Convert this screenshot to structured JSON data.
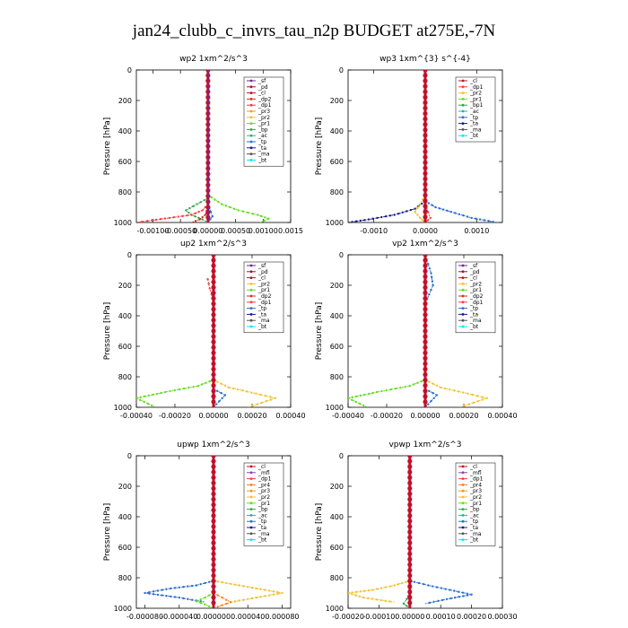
{
  "figure": {
    "title": "jan24_clubb_c_invrs_tau_n2p  BUDGET at275E,-7N",
    "colors": {
      "bt": "#00e5ff",
      "ma": "#555555",
      "ta": "#1a1a8c",
      "tp": "#2a6fd0",
      "ac": "#24b3a0",
      "bp": "#2fa84a",
      "pr1": "#66dd22",
      "pr2": "#f3c12b",
      "pr3": "#ee9922",
      "pr4": "#ff7d1a",
      "dp1": "#ff3b3b",
      "dp2": "#d62d20",
      "cl": "#c0112c",
      "pd": "#a0103c",
      "sf": "#6b2b8f",
      "mfl": "#8e3fb0"
    }
  },
  "chart_data": [
    {
      "type": "line",
      "title": "wp2   1xm^2/s^3",
      "ylabel": "Pressure  [hPa]",
      "xlim": [
        -0.0013,
        0.0015
      ],
      "ylim": [
        1000,
        0
      ],
      "xticks": [
        -0.001,
        -0.0005,
        0.0,
        0.0005,
        0.001,
        0.0015
      ],
      "xtick_labels": [
        "-0.00100",
        "-0.00050",
        "0.00000",
        "0.00050",
        "0.00100",
        "0.0015"
      ],
      "yticks": [
        0,
        200,
        400,
        600,
        800,
        1000
      ],
      "legend_position": "top-right",
      "legend": [
        "_sf",
        "_pd",
        "_cl",
        "_dp2",
        "_dp1",
        "_pr3",
        "_pr2",
        "_pr1",
        "_bp",
        "_ac",
        "_tp",
        "_ta",
        "_ma",
        "_bt"
      ],
      "series": [
        {
          "name": "_pr1",
          "key": "pr1",
          "x": [
            0.0,
            0.0,
            0.00025,
            0.00055,
            0.0009,
            0.0011,
            0.00095
          ],
          "y": [
            0,
            820,
            880,
            920,
            950,
            975,
            1000
          ]
        },
        {
          "name": "_bp",
          "key": "bp",
          "x": [
            0.0,
            0.0,
            -0.0002,
            -0.0004,
            -0.0003,
            -0.0001,
            0.0
          ],
          "y": [
            0,
            840,
            880,
            920,
            950,
            980,
            1000
          ]
        },
        {
          "name": "_dp1",
          "key": "dp1",
          "x": [
            0.0,
            0.0,
            -0.0001,
            -0.0003,
            -0.0007,
            -0.0011,
            -0.0013
          ],
          "y": [
            0,
            880,
            920,
            950,
            970,
            990,
            1000
          ]
        },
        {
          "name": "_dp2",
          "key": "dp2",
          "x": [
            0.0,
            0.0,
            -5e-05,
            -0.00015,
            -0.0003
          ],
          "y": [
            0,
            900,
            950,
            980,
            1000
          ]
        },
        {
          "name": "_tp",
          "key": "tp",
          "x": [
            0.0,
            0.0,
            5e-05,
            8e-05,
            0.0
          ],
          "y": [
            0,
            880,
            930,
            960,
            1000
          ]
        },
        {
          "name": "_cl",
          "key": "cl",
          "x": [
            0.0,
            0.0,
            0.0,
            0.0
          ],
          "y": [
            0,
            500,
            900,
            1000
          ]
        },
        {
          "name": "_sf",
          "key": "sf",
          "x": [
            0.0,
            0.0
          ],
          "y": [
            0,
            1000
          ]
        }
      ]
    },
    {
      "type": "line",
      "title": "wp3   1xm^{3} s^{-4}",
      "ylabel": "Pressure  [hPa]",
      "xlim": [
        -0.0015,
        0.0015
      ],
      "ylim": [
        1000,
        0
      ],
      "xticks": [
        -0.001,
        0.0,
        0.001
      ],
      "xtick_labels": [
        "-0.0010",
        "0.0000",
        "0.0010"
      ],
      "yticks": [
        0,
        200,
        400,
        600,
        800,
        1000
      ],
      "legend_position": "top-right",
      "legend": [
        "_cl",
        "_dp1",
        "_pr2",
        "_pr1",
        "_bp1",
        "_ac",
        "_tp",
        "_ta",
        "_ma",
        "_bt"
      ],
      "series": [
        {
          "name": "_ta",
          "key": "ta",
          "x": [
            0.0,
            0.0,
            -0.0002,
            -0.0006,
            -0.0011,
            -0.0015
          ],
          "y": [
            0,
            860,
            910,
            950,
            980,
            1000
          ]
        },
        {
          "name": "_tp",
          "key": "tp",
          "x": [
            0.0,
            0.0,
            0.0002,
            0.0005,
            0.0009,
            0.0014
          ],
          "y": [
            0,
            860,
            900,
            930,
            970,
            1000
          ]
        },
        {
          "name": "_pr2",
          "key": "pr2",
          "x": [
            0.0,
            0.0,
            -0.0001,
            -0.0002,
            -0.0001,
            0.0
          ],
          "y": [
            0,
            820,
            880,
            930,
            970,
            1000
          ]
        },
        {
          "name": "_dp1",
          "key": "dp1",
          "x": [
            0.0,
            0.0,
            5e-05,
            0.0001,
            0.0
          ],
          "y": [
            0,
            880,
            930,
            970,
            1000
          ]
        },
        {
          "name": "_cl",
          "key": "cl",
          "x": [
            0.0,
            0.0
          ],
          "y": [
            0,
            1000
          ]
        }
      ]
    },
    {
      "type": "line",
      "title": "up2   1xm^2/s^3",
      "ylabel": "Pressure  [hPa]",
      "xlim": [
        -0.0004,
        0.0004
      ],
      "ylim": [
        1000,
        0
      ],
      "xticks": [
        -0.0004,
        -0.0002,
        0.0,
        0.0002,
        0.0004
      ],
      "xtick_labels": [
        "-0.00040",
        "-0.00020",
        "0.00000",
        "0.00020",
        "0.00040"
      ],
      "yticks": [
        0,
        200,
        400,
        600,
        800,
        1000
      ],
      "legend_position": "top-right",
      "legend": [
        "_sf",
        "_pd",
        "_cl",
        "_pr2",
        "_pr1",
        "_dp2",
        "_dp1",
        "_tp",
        "_ta",
        "_ma",
        "_bt"
      ],
      "series": [
        {
          "name": "_pr1",
          "key": "pr1",
          "x": [
            0.0,
            0.0,
            -8e-05,
            -0.00025,
            -0.0004,
            -0.0003
          ],
          "y": [
            0,
            820,
            860,
            900,
            940,
            1000
          ]
        },
        {
          "name": "_pr2",
          "key": "pr2",
          "x": [
            0.0,
            0.0,
            8e-05,
            0.00022,
            0.00032,
            0.00018
          ],
          "y": [
            0,
            820,
            870,
            910,
            940,
            1000
          ]
        },
        {
          "name": "_tp",
          "key": "tp",
          "x": [
            0.0,
            0.0,
            6e-05,
            3e-05,
            0.0
          ],
          "y": [
            0,
            880,
            920,
            960,
            1000
          ]
        },
        {
          "name": "_dp1",
          "key": "dp1",
          "x": [
            -3e-05,
            -2e-05,
            -1e-05,
            0.0,
            0.0
          ],
          "y": [
            160,
            220,
            260,
            300,
            1000
          ]
        },
        {
          "name": "_cl",
          "key": "cl",
          "x": [
            0.0,
            0.0
          ],
          "y": [
            0,
            1000
          ]
        }
      ]
    },
    {
      "type": "line",
      "title": "vp2   1xm^2/s^3",
      "ylabel": "Pressure  [hPa]",
      "xlim": [
        -0.0004,
        0.0004
      ],
      "ylim": [
        1000,
        0
      ],
      "xticks": [
        -0.0004,
        -0.0002,
        0.0,
        0.0002,
        0.0004
      ],
      "xtick_labels": [
        "-0.00040",
        "-0.00020",
        "0.00000",
        "0.00020",
        "0.00040"
      ],
      "yticks": [
        0,
        200,
        400,
        600,
        800,
        1000
      ],
      "legend_position": "top-right",
      "legend": [
        "_sf",
        "_pd",
        "_cl",
        "_pr2",
        "_pr1",
        "_dp2",
        "_dp1",
        "_tp",
        "_ta",
        "_ma",
        "_bt"
      ],
      "series": [
        {
          "name": "_pr1",
          "key": "pr1",
          "x": [
            0.0,
            0.0,
            -8e-05,
            -0.00025,
            -0.0004,
            -0.0003
          ],
          "y": [
            0,
            820,
            860,
            900,
            940,
            1000
          ]
        },
        {
          "name": "_pr2",
          "key": "pr2",
          "x": [
            0.0,
            0.0,
            8e-05,
            0.00022,
            0.00032,
            0.00018
          ],
          "y": [
            0,
            820,
            870,
            910,
            940,
            1000
          ]
        },
        {
          "name": "_tp",
          "key": "tp",
          "x": [
            0.0,
            3e-05,
            4e-05,
            2e-05,
            0.0,
            0.0,
            6e-05,
            3e-05,
            0.0
          ],
          "y": [
            0,
            120,
            200,
            260,
            320,
            880,
            920,
            960,
            1000
          ]
        },
        {
          "name": "_cl",
          "key": "cl",
          "x": [
            0.0,
            0.0
          ],
          "y": [
            0,
            1000
          ]
        }
      ]
    },
    {
      "type": "line",
      "title": "upwp   1xm^2/s^3",
      "ylabel": "Pressure  [hPa]",
      "xlim": [
        -9e-05,
        9e-05
      ],
      "ylim": [
        1000,
        0
      ],
      "xticks": [
        -8e-05,
        -4e-05,
        0.0,
        4e-05,
        8e-05
      ],
      "xtick_labels": [
        "-0.000080",
        "-0.000040",
        "0.000000",
        "0.000040",
        "0.000080"
      ],
      "yticks": [
        0,
        200,
        400,
        600,
        800,
        1000
      ],
      "legend_position": "top-right",
      "legend": [
        "_cl",
        "_mfl",
        "_dp1",
        "_pr4",
        "_pr3",
        "_pr2",
        "_pr1",
        "_bp",
        "_ac",
        "_tp",
        "_ta",
        "_ma",
        "_bt"
      ],
      "series": [
        {
          "name": "_pr2",
          "key": "pr2",
          "x": [
            0.0,
            0.0,
            3e-05,
            6e-05,
            8e-05,
            5e-05,
            2e-05
          ],
          "y": [
            0,
            820,
            850,
            880,
            900,
            930,
            960
          ]
        },
        {
          "name": "_tp",
          "key": "tp",
          "x": [
            0.0,
            0.0,
            -2e-05,
            -5e-05,
            -8e-05,
            -4e-05,
            -1e-05
          ],
          "y": [
            0,
            820,
            850,
            870,
            900,
            930,
            960
          ]
        },
        {
          "name": "_pr1",
          "key": "pr1",
          "x": [
            0.0,
            -1e-05,
            -2e-05,
            -1e-05,
            0.0
          ],
          "y": [
            900,
            930,
            955,
            975,
            1000
          ]
        },
        {
          "name": "_pr4",
          "key": "pr4",
          "x": [
            0.0,
            1e-05,
            2e-05,
            1e-05,
            0.0
          ],
          "y": [
            900,
            930,
            960,
            980,
            1000
          ]
        },
        {
          "name": "_cl",
          "key": "cl",
          "x": [
            0.0,
            0.0
          ],
          "y": [
            0,
            1000
          ]
        }
      ]
    },
    {
      "type": "line",
      "title": "vpwp   1xm^2/s^3",
      "ylabel": "Pressure  [hPa]",
      "xlim": [
        -0.0002,
        0.0003
      ],
      "ylim": [
        1000,
        0
      ],
      "xticks": [
        -0.0002,
        -0.0001,
        0.0,
        0.0001,
        0.0002,
        0.0003
      ],
      "xtick_labels": [
        "-0.00020",
        "-0.00010",
        "0.00000",
        "0.00010",
        "0.00020",
        "0.00030"
      ],
      "yticks": [
        0,
        200,
        400,
        600,
        800,
        1000
      ],
      "legend_position": "top-right",
      "legend": [
        "_cl",
        "_mfl",
        "_dp1",
        "_pr4",
        "_pr3",
        "_pr2",
        "_pr1",
        "_bp",
        "_ac",
        "_tp",
        "_ta",
        "_ma",
        "_bt"
      ],
      "series": [
        {
          "name": "_tp",
          "key": "tp",
          "x": [
            0.0,
            0.0,
            6e-05,
            0.00013,
            0.0002,
            0.00012,
            5e-05
          ],
          "y": [
            0,
            820,
            850,
            880,
            910,
            940,
            970
          ]
        },
        {
          "name": "_pr2",
          "key": "pr2",
          "x": [
            0.0,
            0.0,
            -5e-05,
            -0.00012,
            -0.0002,
            -0.00015,
            -5e-05
          ],
          "y": [
            0,
            820,
            850,
            880,
            900,
            930,
            960
          ]
        },
        {
          "name": "_bp",
          "key": "bp",
          "x": [
            0.0,
            -1e-05,
            -2e-05,
            0.0
          ],
          "y": [
            900,
            940,
            970,
            1000
          ]
        },
        {
          "name": "_cl",
          "key": "cl",
          "x": [
            0.0,
            0.0
          ],
          "y": [
            0,
            1000
          ]
        }
      ]
    }
  ]
}
